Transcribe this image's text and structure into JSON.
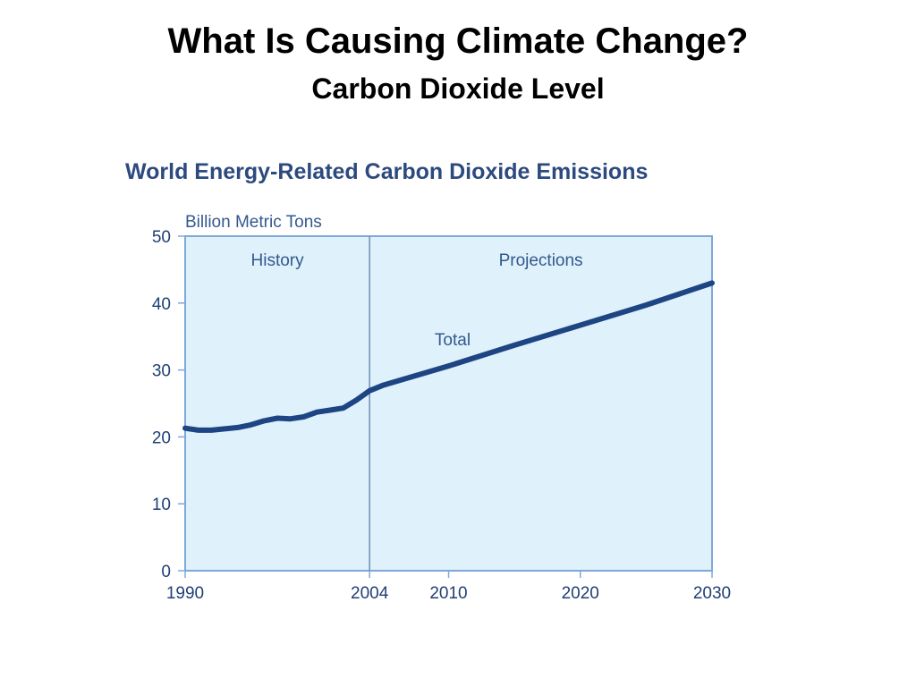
{
  "slide": {
    "title": "What Is Causing Climate Change?",
    "subtitle": "Carbon Dioxide Level"
  },
  "chart_data": {
    "type": "line",
    "title": "World Energy-Related Carbon Dioxide Emissions",
    "ylabel": "Billion Metric Tons",
    "xlabel": "",
    "ylim": [
      0,
      50
    ],
    "xlim": [
      1990,
      2030
    ],
    "yticks": [
      0,
      10,
      20,
      30,
      40,
      50
    ],
    "xticks": [
      1990,
      2004,
      2010,
      2020,
      2030
    ],
    "grid": false,
    "divider_year": 2004,
    "regions": [
      {
        "label": "History",
        "from": 1990,
        "to": 2004
      },
      {
        "label": "Projections",
        "from": 2004,
        "to": 2030
      }
    ],
    "series": [
      {
        "name": "Total",
        "x": [
          1990,
          1991,
          1992,
          1993,
          1994,
          1995,
          1996,
          1997,
          1998,
          1999,
          2000,
          2001,
          2002,
          2003,
          2004,
          2005,
          2010,
          2015,
          2020,
          2025,
          2030
        ],
        "values": [
          21.3,
          21.0,
          21.0,
          21.2,
          21.4,
          21.8,
          22.4,
          22.8,
          22.7,
          23.0,
          23.7,
          24.0,
          24.3,
          25.5,
          26.9,
          27.7,
          30.6,
          33.7,
          36.7,
          39.7,
          43.0
        ]
      }
    ],
    "colors": {
      "plot_background": "#dff1fa",
      "frame": "#7ea8d9",
      "line": "#1e4583",
      "title_text": "#2c4a7e",
      "label_text": "#33598f",
      "tick_text": "#1f3f75"
    }
  }
}
